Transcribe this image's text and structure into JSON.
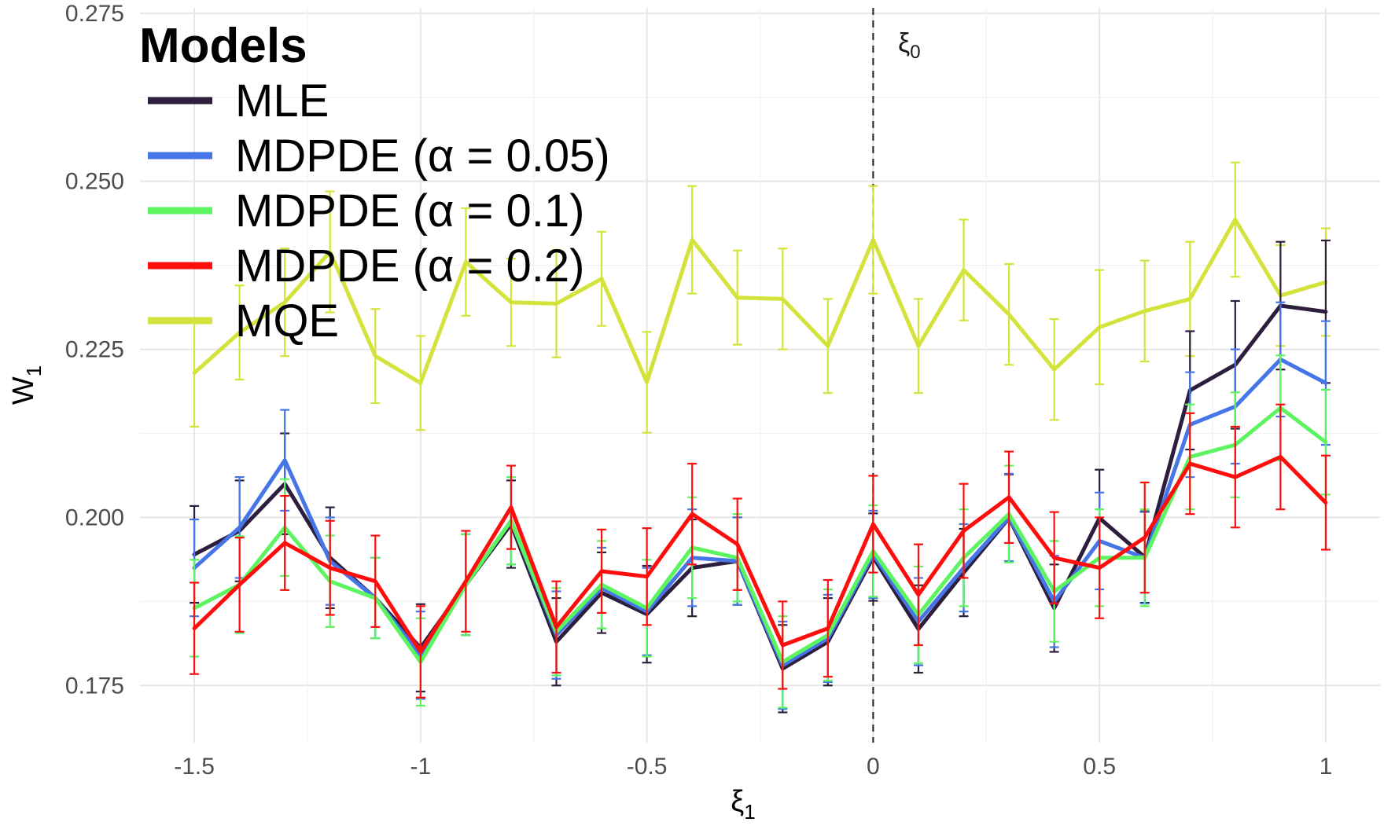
{
  "chart_data": {
    "type": "line",
    "xlabel": "ξ",
    "xlabel_sub": "1",
    "ylabel": "W",
    "ylabel_sub": "1",
    "xlim": [
      -1.62,
      1.12
    ],
    "ylim": [
      0.1665,
      0.2758
    ],
    "xticks": [
      -1.5,
      -1,
      -0.5,
      0,
      0.5,
      1
    ],
    "xtick_labels": [
      "-1.5",
      "-1",
      "-0.5",
      "0",
      "0.5",
      "1"
    ],
    "yticks": [
      0.175,
      0.2,
      0.225,
      0.25,
      0.275
    ],
    "ytick_labels": [
      "0.175",
      "0.200",
      "0.225",
      "0.250",
      "0.275"
    ],
    "grid": true,
    "legend": {
      "title": "Models",
      "placement": "top-left"
    },
    "annotation": {
      "text": "ξ",
      "sub": "0",
      "x": 0
    },
    "x": [
      -1.5,
      -1.4,
      -1.3,
      -1.2,
      -1.1,
      -1.0,
      -0.9,
      -0.8,
      -0.7,
      -0.6,
      -0.5,
      -0.4,
      -0.3,
      -0.2,
      -0.1,
      0.0,
      0.1,
      0.2,
      0.3,
      0.4,
      0.5,
      0.6,
      0.7,
      0.8,
      0.9,
      1.0
    ],
    "series": [
      {
        "name": "MQE",
        "color": "#d4e33c",
        "values": [
          0.2215,
          0.2275,
          0.232,
          0.2395,
          0.224,
          0.22,
          0.238,
          0.232,
          0.2318,
          0.2355,
          0.2201,
          0.2413,
          0.2327,
          0.2325,
          0.2255,
          0.2413,
          0.2255,
          0.2368,
          0.2302,
          0.222,
          0.2283,
          0.2307,
          0.2325,
          0.2443,
          0.233,
          0.235
        ],
        "err": [
          0.008,
          0.007,
          0.008,
          0.009,
          0.007,
          0.007,
          0.008,
          0.0065,
          0.008,
          0.007,
          0.0075,
          0.008,
          0.007,
          0.0075,
          0.007,
          0.008,
          0.007,
          0.0075,
          0.0075,
          0.0075,
          0.0085,
          0.0075,
          0.0085,
          0.0085,
          0.0075,
          0.008
        ]
      },
      {
        "name": "MLE",
        "color": "#2d1e3e",
        "values": [
          0.1945,
          0.198,
          0.205,
          0.194,
          0.188,
          0.1806,
          0.19,
          0.199,
          0.1815,
          0.1888,
          0.1856,
          0.1925,
          0.1935,
          0.1775,
          0.1815,
          0.1941,
          0.1834,
          0.1918,
          0.1999,
          0.1865,
          0.1999,
          0.1941,
          0.2189,
          0.2227,
          0.2315,
          0.2306
        ],
        "err": [
          0.0072,
          0.0075,
          0.0075,
          0.0075,
          0.006,
          0.0065,
          0.0075,
          0.0065,
          0.0065,
          0.006,
          0.0072,
          0.0072,
          0.0065,
          0.0065,
          0.0065,
          0.0065,
          0.0065,
          0.0065,
          0.0065,
          0.0065,
          0.0072,
          0.0068,
          0.0088,
          0.0095,
          0.0095,
          0.0106
        ]
      },
      {
        "name": "MDPDE (α = 0.05)",
        "color": "#4575e6",
        "values": [
          0.1925,
          0.1985,
          0.2085,
          0.1935,
          0.188,
          0.1795,
          0.19,
          0.1995,
          0.1825,
          0.1895,
          0.186,
          0.194,
          0.1935,
          0.178,
          0.182,
          0.1945,
          0.1845,
          0.1925,
          0.2,
          0.1875,
          0.1965,
          0.194,
          0.2138,
          0.2165,
          0.2235,
          0.22
        ],
        "err": [
          0.0072,
          0.0075,
          0.0075,
          0.0065,
          0.006,
          0.0065,
          0.0075,
          0.0065,
          0.0065,
          0.006,
          0.0065,
          0.0072,
          0.0065,
          0.0065,
          0.0065,
          0.0065,
          0.0065,
          0.0065,
          0.0065,
          0.0068,
          0.0072,
          0.0068,
          0.0078,
          0.0085,
          0.0085,
          0.0092
        ]
      },
      {
        "name": "MDPDE (α = 0.1)",
        "color": "#5cf560",
        "values": [
          0.1865,
          0.19,
          0.1985,
          0.1905,
          0.188,
          0.1785,
          0.19,
          0.1995,
          0.183,
          0.19,
          0.1865,
          0.1955,
          0.194,
          0.1785,
          0.1825,
          0.195,
          0.1855,
          0.194,
          0.2005,
          0.189,
          0.194,
          0.194,
          0.209,
          0.2108,
          0.2163,
          0.2112
        ],
        "err": [
          0.0072,
          0.0072,
          0.0072,
          0.0068,
          0.006,
          0.0065,
          0.0075,
          0.0065,
          0.0065,
          0.0065,
          0.0072,
          0.0075,
          0.0065,
          0.0068,
          0.0068,
          0.0068,
          0.0072,
          0.0072,
          0.0072,
          0.0075,
          0.0072,
          0.0072,
          0.0078,
          0.0078,
          0.0078,
          0.0078
        ]
      },
      {
        "name": "MDPDE (α = 0.2)",
        "color": "#ff0d0d",
        "values": [
          0.1835,
          0.19,
          0.1962,
          0.1925,
          0.1905,
          0.18,
          0.1905,
          0.2015,
          0.1837,
          0.192,
          0.1912,
          0.2005,
          0.196,
          0.181,
          0.1835,
          0.199,
          0.1885,
          0.198,
          0.203,
          0.194,
          0.1925,
          0.197,
          0.208,
          0.206,
          0.209,
          0.2022
        ],
        "err": [
          0.0068,
          0.007,
          0.007,
          0.007,
          0.0068,
          0.0068,
          0.0075,
          0.0062,
          0.0068,
          0.0062,
          0.0072,
          0.0075,
          0.0068,
          0.0065,
          0.0072,
          0.0072,
          0.0075,
          0.007,
          0.0068,
          0.0068,
          0.0075,
          0.0082,
          0.0075,
          0.0075,
          0.0078,
          0.007
        ]
      }
    ],
    "legend_order": [
      "MLE",
      "MDPDE (α = 0.05)",
      "MDPDE (α = 0.1)",
      "MDPDE (α = 0.2)",
      "MQE"
    ]
  }
}
